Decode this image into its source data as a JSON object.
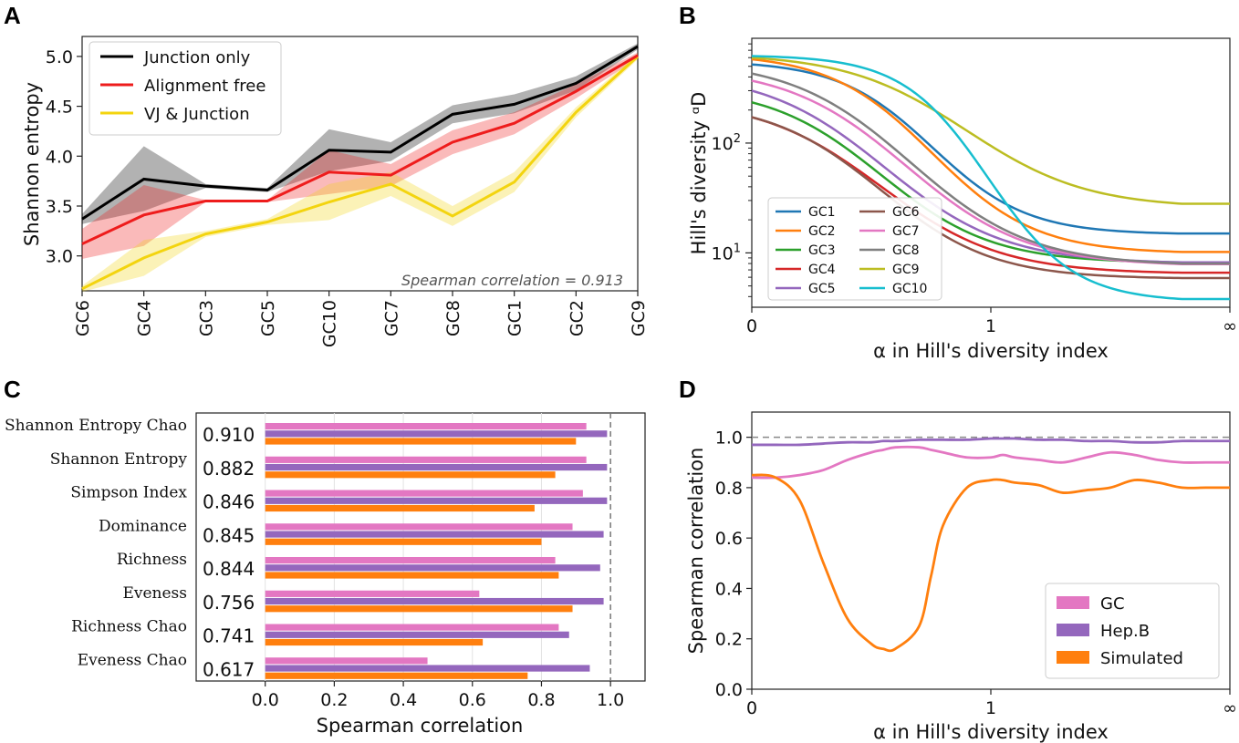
{
  "figure": {
    "panels": [
      "A",
      "B",
      "C",
      "D"
    ]
  },
  "chart_data": [
    {
      "panel": "A",
      "type": "line",
      "ylabel": "Shannon entropy",
      "xlabel": "",
      "ylim": [
        2.65,
        5.2
      ],
      "yticks": [
        "3.0",
        "3.5",
        "4.0",
        "4.5",
        "5.0"
      ],
      "categories": [
        "GC6",
        "GC4",
        "GC3",
        "GC5",
        "GC10",
        "GC7",
        "GC8",
        "GC1",
        "GC2",
        "GC9"
      ],
      "series": [
        {
          "name": "Junction only",
          "color": "#000000",
          "values": [
            3.37,
            3.77,
            3.7,
            3.66,
            4.06,
            4.04,
            4.42,
            4.52,
            4.73,
            5.1
          ],
          "lower": [
            3.32,
            3.45,
            3.68,
            3.64,
            3.85,
            3.95,
            4.33,
            4.43,
            4.66,
            5.07
          ],
          "upper": [
            3.42,
            4.1,
            3.72,
            3.68,
            4.27,
            4.14,
            4.51,
            4.62,
            4.8,
            5.13
          ]
        },
        {
          "name": "Alignment free",
          "color": "#ee1c1c",
          "values": [
            3.12,
            3.41,
            3.55,
            3.55,
            3.84,
            3.81,
            4.14,
            4.33,
            4.65,
            5.01
          ],
          "lower": [
            2.97,
            3.1,
            3.54,
            3.54,
            3.62,
            3.7,
            4.02,
            4.22,
            4.58,
            4.98
          ],
          "upper": [
            3.27,
            3.71,
            3.56,
            3.56,
            4.06,
            3.92,
            4.26,
            4.44,
            4.72,
            5.04
          ]
        },
        {
          "name": "VJ & Junction",
          "color": "#f3d40f",
          "values": [
            2.67,
            2.98,
            3.22,
            3.34,
            3.54,
            3.72,
            3.4,
            3.74,
            4.44,
            5.0
          ],
          "lower": [
            2.64,
            2.8,
            3.19,
            3.31,
            3.36,
            3.6,
            3.3,
            3.64,
            4.39,
            4.97
          ],
          "upper": [
            2.7,
            3.16,
            3.25,
            3.37,
            3.72,
            3.84,
            3.5,
            3.84,
            4.49,
            5.03
          ]
        }
      ],
      "annotation": "Spearman correlation = 0.913",
      "legend": "top-left"
    },
    {
      "panel": "B",
      "type": "line",
      "ylabel": "Hill's diversity ᵅD",
      "xlabel": "α in Hill's diversity index",
      "yscale": "log",
      "ylim": [
        3.2,
        900
      ],
      "yticks": [
        {
          "value": 10,
          "base": "10",
          "exp": "1"
        },
        {
          "value": 100,
          "base": "10",
          "exp": "2"
        }
      ],
      "xticks": [
        "0",
        "1",
        "∞"
      ],
      "series": [
        {
          "name": "GC1",
          "color": "#1f77b4",
          "start": 520,
          "end": 15
        },
        {
          "name": "GC2",
          "color": "#ff7f0e",
          "start": 580,
          "end": 10.2
        },
        {
          "name": "GC3",
          "color": "#2ca02c",
          "start": 235,
          "end": 8.2
        },
        {
          "name": "GC4",
          "color": "#d62728",
          "start": 172,
          "end": 6.6
        },
        {
          "name": "GC5",
          "color": "#9467bd",
          "start": 300,
          "end": 8.2
        },
        {
          "name": "GC6",
          "color": "#8c564b",
          "start": 172,
          "end": 5.9
        },
        {
          "name": "GC7",
          "color": "#e377c2",
          "start": 370,
          "end": 7.9
        },
        {
          "name": "GC8",
          "color": "#7f7f7f",
          "start": 430,
          "end": 8.0
        },
        {
          "name": "GC9",
          "color": "#bcbd22",
          "start": 600,
          "end": 28
        },
        {
          "name": "GC10",
          "color": "#17becf",
          "start": 620,
          "end": 3.8
        }
      ],
      "legend": "lower-left"
    },
    {
      "panel": "C",
      "type": "bar",
      "orientation": "horizontal",
      "xlabel": "Spearman correlation",
      "xlim": [
        -0.2,
        1.1
      ],
      "xticks": [
        "0.0",
        "0.2",
        "0.4",
        "0.6",
        "0.8",
        "1.0"
      ],
      "categories": [
        "Shannon Entropy Chao",
        "Shannon Entropy",
        "Simpson Index",
        "Dominance",
        "Richness",
        "Eveness",
        "Richness Chao",
        "Eveness Chao"
      ],
      "corr_values": [
        "0.910",
        "0.882",
        "0.846",
        "0.845",
        "0.844",
        "0.756",
        "0.741",
        "0.617"
      ],
      "series": [
        {
          "name": "GC",
          "color": "#e377c2",
          "values": [
            0.93,
            0.93,
            0.92,
            0.89,
            0.84,
            0.62,
            0.85,
            0.47
          ]
        },
        {
          "name": "Hep.B",
          "color": "#9467bd",
          "values": [
            0.99,
            0.99,
            0.99,
            0.98,
            0.97,
            0.98,
            0.88,
            0.94
          ]
        },
        {
          "name": "Simulated",
          "color": "#ff7f0e",
          "values": [
            0.9,
            0.84,
            0.78,
            0.8,
            0.85,
            0.89,
            0.63,
            0.76
          ]
        }
      ],
      "reference_line": 1.0
    },
    {
      "panel": "D",
      "type": "line",
      "ylabel": "Spearman correlation",
      "xlabel": "α in Hill's diversity index",
      "ylim": [
        0.0,
        1.1
      ],
      "yticks": [
        "0.0",
        "0.2",
        "0.4",
        "0.6",
        "0.8",
        "1.0"
      ],
      "xticks": [
        "0",
        "1",
        "∞"
      ],
      "x": [
        0.0,
        0.1,
        0.2,
        0.3,
        0.4,
        0.5,
        0.55,
        0.6,
        0.7,
        0.75,
        0.8,
        0.9,
        1.0,
        1.05,
        1.1,
        1.2,
        1.3,
        1.4,
        1.5,
        1.6,
        1.7,
        1.8,
        1.9,
        2.0
      ],
      "series": [
        {
          "name": "GC",
          "color": "#e377c2",
          "values": [
            0.84,
            0.84,
            0.85,
            0.87,
            0.91,
            0.94,
            0.95,
            0.96,
            0.96,
            0.95,
            0.94,
            0.92,
            0.92,
            0.93,
            0.92,
            0.91,
            0.9,
            0.92,
            0.94,
            0.93,
            0.91,
            0.9,
            0.9,
            0.9
          ]
        },
        {
          "name": "Hep.B",
          "color": "#9467bd",
          "values": [
            0.97,
            0.97,
            0.97,
            0.975,
            0.98,
            0.98,
            0.985,
            0.985,
            0.99,
            0.99,
            0.99,
            0.99,
            0.995,
            0.995,
            0.995,
            0.99,
            0.99,
            0.985,
            0.985,
            0.98,
            0.98,
            0.985,
            0.985,
            0.985
          ]
        },
        {
          "name": "Simulated",
          "color": "#ff7f0e",
          "values": [
            0.85,
            0.84,
            0.75,
            0.5,
            0.28,
            0.18,
            0.16,
            0.16,
            0.25,
            0.45,
            0.65,
            0.8,
            0.83,
            0.83,
            0.82,
            0.81,
            0.78,
            0.79,
            0.8,
            0.83,
            0.82,
            0.8,
            0.8,
            0.8
          ]
        }
      ],
      "reference_line": 1.0,
      "legend": "lower-right"
    }
  ]
}
